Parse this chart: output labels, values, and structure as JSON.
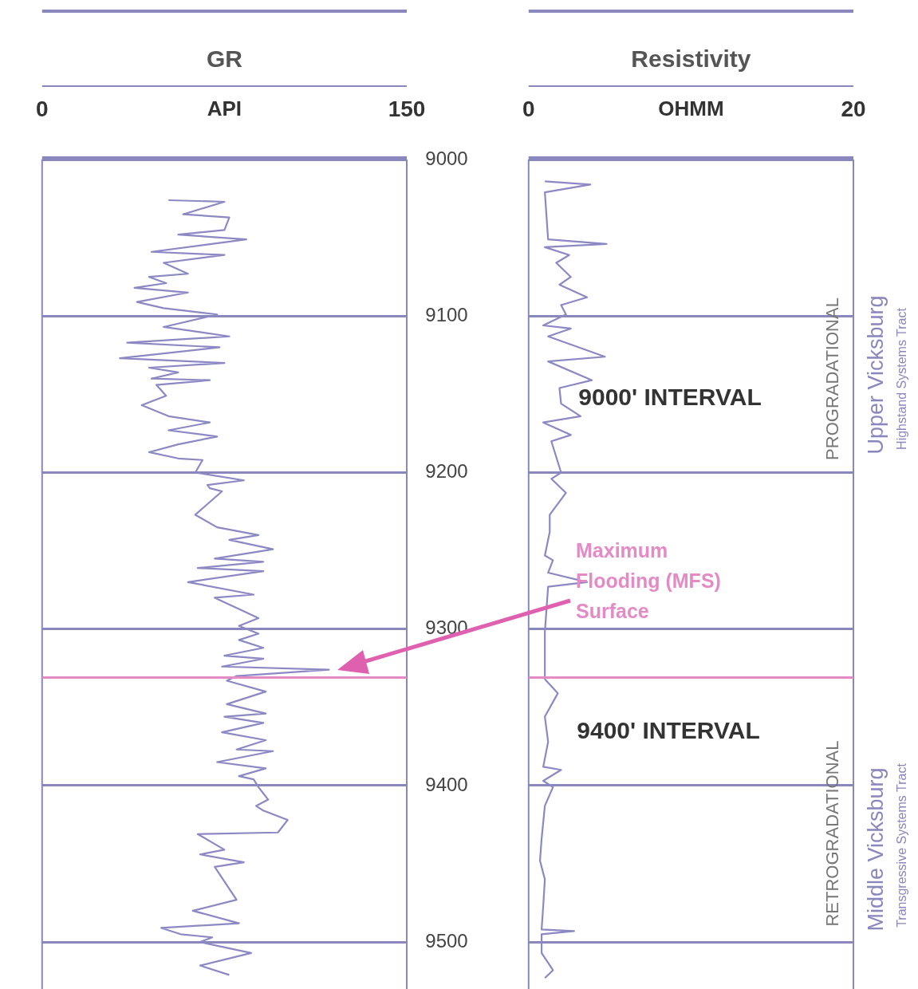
{
  "chart_data": [
    {
      "type": "line",
      "title": "GR",
      "xlabel": "API",
      "xlim": [
        0,
        150
      ],
      "xticks": [
        0,
        150
      ],
      "ylim": [
        9530,
        9000
      ],
      "yticks": [
        9000,
        9100,
        9200,
        9300,
        9400,
        9500
      ],
      "grid": "y",
      "marker": "none",
      "line_style": "solid",
      "series": [
        {
          "color": "#8c88c4",
          "x": [
            52,
            75,
            58,
            77,
            75,
            56,
            84,
            45,
            75,
            50,
            60,
            44,
            51,
            38,
            60,
            39,
            50,
            72,
            50,
            77,
            35,
            73,
            32,
            75,
            44,
            56,
            45,
            69,
            47,
            51,
            41,
            52,
            69,
            52,
            72,
            56,
            44,
            56,
            66,
            63,
            83,
            68,
            69,
            74,
            63,
            72,
            89,
            77,
            95,
            71,
            91,
            64,
            91,
            60,
            87,
            71,
            89,
            81,
            89,
            81,
            91,
            75,
            91,
            74,
            118,
            80,
            76,
            92,
            76,
            92,
            75,
            91,
            74,
            92,
            80,
            95,
            72,
            92,
            81,
            87,
            89,
            93,
            88,
            91,
            101,
            97,
            64,
            75,
            65,
            83,
            71,
            80,
            62,
            81,
            49,
            57,
            70,
            65,
            86,
            65,
            77
          ],
          "values": [
            9026,
            9027,
            9035,
            9037,
            9045,
            9048,
            9051,
            9059,
            9061,
            9066,
            9073,
            9075,
            9079,
            9082,
            9085,
            9091,
            9095,
            9099,
            9107,
            9113,
            9117,
            9120,
            9127,
            9130,
            9133,
            9136,
            9140,
            9141,
            9144,
            9151,
            9157,
            9164,
            9168,
            9173,
            9177,
            9182,
            9187,
            9191,
            9192,
            9200,
            9205,
            9208,
            9210,
            9212,
            9227,
            9235,
            9240,
            9243,
            9249,
            9255,
            9257,
            9261,
            9263,
            9270,
            9278,
            9280,
            9293,
            9298,
            9303,
            9307,
            9312,
            9317,
            9319,
            9324,
            9326,
            9330,
            9333,
            9340,
            9348,
            9354,
            9356,
            9360,
            9366,
            9371,
            9377,
            9378,
            9385,
            9389,
            9394,
            9396,
            9401,
            9409,
            9413,
            9416,
            9422,
            9430,
            9431,
            9441,
            9444,
            9449,
            9452,
            9473,
            9480,
            9488,
            9491,
            9495,
            9497,
            9500,
            9507,
            9515,
            9521
          ]
        }
      ],
      "ref_lines": [
        {
          "axis": "y",
          "value": 9331,
          "color": "#e48ac4"
        }
      ]
    },
    {
      "type": "line",
      "title": "Resistivity",
      "xlabel": "OHMM",
      "xlim": [
        0,
        20
      ],
      "xticks": [
        0,
        20
      ],
      "ylim": [
        9530,
        9000
      ],
      "yticks": [
        9000,
        9100,
        9200,
        9300,
        9400,
        9500
      ],
      "tick_labels": "x",
      "grid": "y",
      "marker": "none",
      "line_style": "solid",
      "series": [
        {
          "color": "#8c88c4",
          "x": [
            1.0,
            3.8,
            1.0,
            1.2,
            4.8,
            1.0,
            2.5,
            1.7,
            2.6,
            1.9,
            3.6,
            2.0,
            2.3,
            0.9,
            2.6,
            1.2,
            4.7,
            1.2,
            3.9,
            1.9,
            2.0,
            3.2,
            0.9,
            2.6,
            1.4,
            2.0,
            1.4,
            2.3,
            1.3,
            1.3,
            1.0,
            1.5,
            1.2,
            3.6,
            1.2,
            1.0,
            1.0,
            1.8,
            1.0,
            1.2,
            0.9,
            2.0,
            0.9,
            1.5,
            1.0,
            0.8,
            0.7,
            1.0,
            0.9,
            0.8,
            2.8,
            0.8,
            0.8,
            1.5,
            1.0
          ],
          "values": [
            9014,
            9016,
            9021,
            9051,
            9054,
            9056,
            9061,
            9066,
            9075,
            9080,
            9088,
            9093,
            9099,
            9106,
            9108,
            9113,
            9126,
            9129,
            9141,
            9146,
            9156,
            9164,
            9168,
            9176,
            9180,
            9200,
            9204,
            9213,
            9227,
            9238,
            9253,
            9256,
            9264,
            9270,
            9273,
            9302,
            9332,
            9341,
            9356,
            9372,
            9388,
            9390,
            9397,
            9401,
            9413,
            9434,
            9448,
            9460,
            9477,
            9492,
            9493,
            9495,
            9507,
            9518,
            9523
          ]
        }
      ],
      "ref_lines": [
        {
          "axis": "y",
          "value": 9331,
          "label": "Maximum\nFlooding (MFS)\nSurface",
          "color": "#e48ac4"
        }
      ],
      "annotations": [
        "9000' INTERVAL",
        "9400' INTERVAL",
        "PROGRADATIONAL",
        "Upper Vicksburg",
        "Highstand Systems Tract",
        "RETROGRADATIONAL",
        "Middle Vicksburg",
        "Transgressive Systems Tract"
      ]
    }
  ]
}
